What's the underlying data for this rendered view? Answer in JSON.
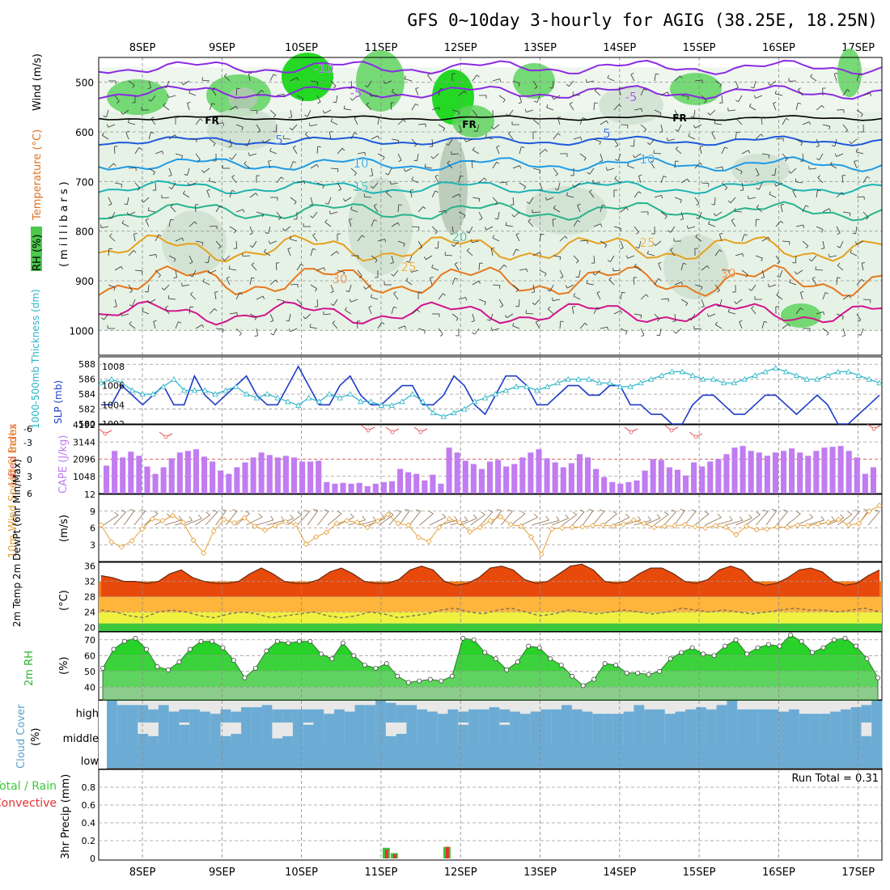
{
  "title": "GFS 0~10day 3-hourly for AGIG (38.25E, 18.25N)",
  "time_axis": {
    "labels": [
      "8SEP",
      "9SEP",
      "10SEP",
      "11SEP",
      "12SEP",
      "13SEP",
      "14SEP",
      "15SEP",
      "16SEP",
      "17SEP"
    ]
  },
  "colors": {
    "rh_light": "#e6f2e6",
    "rh_mid": "#cfe0cf",
    "rh_dark": "#b4c7b4",
    "rh_bright": "#5fd35f",
    "rh_vivid": "#00d200",
    "temp_m10": "#8a2be2",
    "temp_5": "#1e5adc",
    "temp_10": "#1e9be6",
    "temp_15": "#1eb4b4",
    "temp_20": "#28b48c",
    "temp_25": "#e6a01e",
    "temp_30": "#e6781e",
    "temp_35": "#d2148c",
    "slp": "#1e3cc8",
    "thick": "#28b4c8",
    "cape": "#c07cf0",
    "li": "#e65050",
    "wind": "#e6a03c",
    "barb": "#8c6e50",
    "t2m_band": "#ff6400",
    "dew": "#7a6a5a",
    "rh2m": "#28d228",
    "cloud": "#6cacd4",
    "cloud_empty": "#f4f0f8",
    "precip_total": "#3cc83c",
    "precip_conv": "#e63232"
  },
  "panels": {
    "upper": {
      "ylabel_rh": "RH (%)",
      "ylabel_temp": "Temperature (°C)",
      "ylabel_wind": "Wind (m/s)",
      "ylabel_p": "(millibars)",
      "yticks": [
        "500",
        "600",
        "700",
        "800",
        "900",
        "1000"
      ],
      "contour_labels": [
        {
          "text": "-10",
          "series": "temp_m10"
        },
        {
          "text": "-5",
          "series": "temp_m10"
        },
        {
          "text": "-5",
          "series": "temp_m10"
        },
        {
          "text": "5",
          "series": "temp_5"
        },
        {
          "text": "5",
          "series": "temp_5"
        },
        {
          "text": "10",
          "series": "temp_10"
        },
        {
          "text": "10",
          "series": "temp_10"
        },
        {
          "text": "15",
          "series": "temp_15"
        },
        {
          "text": "20",
          "series": "temp_20"
        },
        {
          "text": "25",
          "series": "temp_25"
        },
        {
          "text": "25",
          "series": "temp_25"
        },
        {
          "text": "30",
          "series": "temp_30"
        },
        {
          "text": "30",
          "series": "temp_30"
        }
      ],
      "freezing_label": "FR"
    },
    "slp": {
      "ylabel_thick": "1000-500mb Thickness (dm)",
      "ylabel_slp": "SLP (mb)",
      "left_ticks": [
        "580",
        "582",
        "584",
        "586",
        "588"
      ],
      "right_ticks": [
        "1002",
        "1004",
        "1006",
        "1008"
      ]
    },
    "cape": {
      "ylabel_li": "Lifted Index",
      "ylabel_cape": "CAPE (J/kg)",
      "li_ticks": [
        "-6",
        "-3",
        "0",
        "3",
        "6"
      ],
      "cape_ticks": [
        "4192",
        "3144",
        "2096",
        "1048"
      ]
    },
    "wind10": {
      "ylabel": "10m Wind Speed & Barbs",
      "units": "(m/s)",
      "yticks": [
        "3",
        "6",
        "9",
        "12"
      ]
    },
    "t2m": {
      "ylabel": "2m Temp 2m DewPt (6hr Min/Max)",
      "units": "(°C)",
      "yticks": [
        "20",
        "24",
        "28",
        "32",
        "36"
      ]
    },
    "rh2m": {
      "ylabel": "2m RH",
      "units": "(%)",
      "yticks": [
        "40",
        "50",
        "60",
        "70"
      ]
    },
    "cloud": {
      "ylabel": "Cloud Cover",
      "units": "(%)",
      "levels": [
        "high",
        "middle",
        "low"
      ]
    },
    "precip": {
      "ylabel_total": "Total / Rain",
      "ylabel_conv": "Convective",
      "ylabel": "3hr Precip (mm)",
      "yticks": [
        "0",
        "0.2",
        "0.4",
        "0.6",
        "0.8"
      ],
      "run_total": "Run Total = 0.31"
    }
  },
  "chart_data": {
    "type": "meteogram",
    "title": "GFS 0~10day 3-hourly for AGIG (38.25E, 18.25N)",
    "x_start": "07SEP 12Z",
    "x_step_hours": 3,
    "slp_mb": [
      1004,
      1004,
      1006,
      1005,
      1004,
      1005,
      1006,
      1004,
      1004,
      1007,
      1005,
      1004,
      1005,
      1006,
      1007,
      1005,
      1004,
      1004,
      1006,
      1008,
      1006,
      1004,
      1004,
      1006,
      1007,
      1005,
      1004,
      1004,
      1005,
      1006,
      1006,
      1004,
      1004,
      1005,
      1007,
      1006,
      1004,
      1003,
      1005,
      1007,
      1007,
      1006,
      1004,
      1004,
      1005,
      1006,
      1006,
      1005,
      1005,
      1006,
      1006,
      1004,
      1004,
      1003,
      1003,
      1002,
      1002,
      1004,
      1005,
      1005,
      1004,
      1003,
      1003,
      1004,
      1005,
      1005,
      1004,
      1003,
      1004,
      1005,
      1004,
      1002,
      1002,
      1003,
      1004,
      1005
    ],
    "thickness_dm": [
      585.5,
      586.0,
      585.5,
      584.5,
      584.0,
      584.0,
      585.0,
      586.0,
      584.5,
      584.5,
      584.5,
      584.0,
      584.5,
      585.0,
      584.0,
      583.5,
      584.0,
      583.5,
      583.0,
      582.5,
      583.5,
      583.0,
      584.0,
      583.5,
      584.0,
      583.0,
      583.0,
      582.5,
      582.5,
      583.0,
      584.0,
      583.0,
      581.5,
      581.0,
      581.5,
      582.0,
      583.0,
      583.5,
      584.0,
      584.5,
      585.0,
      585.0,
      584.5,
      585.0,
      585.5,
      586.0,
      586.0,
      586.0,
      585.5,
      585.5,
      585.0,
      585.0,
      585.5,
      586.0,
      586.5,
      587.0,
      587.0,
      586.5,
      586.0,
      586.0,
      585.5,
      585.5,
      586.0,
      586.5,
      587.0,
      587.5,
      587.0,
      586.5,
      586.0,
      586.0,
      586.5,
      587.0,
      587.0,
      586.5,
      586.0,
      585.5
    ],
    "cape_jkg": [
      1700,
      2600,
      2200,
      2550,
      2300,
      1650,
      1200,
      1600,
      2150,
      2500,
      2600,
      2700,
      2250,
      1950,
      1400,
      1200,
      1600,
      1900,
      2200,
      2500,
      2350,
      2200,
      2300,
      2200,
      1950,
      1950,
      2000,
      700,
      600,
      650,
      600,
      650,
      450,
      600,
      700,
      750,
      1500,
      1300,
      1200,
      800,
      1150,
      600,
      2800,
      2500,
      2000,
      1800,
      1500,
      1950,
      2050,
      1650,
      1800,
      2200,
      2500,
      2700,
      2150,
      1900,
      1600,
      1850,
      2400,
      2200,
      1500,
      1000,
      700,
      600,
      700,
      800,
      1400,
      2100,
      2050,
      1600,
      1450,
      1100,
      1900,
      1650,
      1950,
      2100,
      2400,
      2800,
      2900,
      2600,
      2500,
      2300,
      2500,
      2600,
      2750,
      2500,
      2300,
      2600,
      2800,
      2850,
      2900,
      2600,
      2200,
      1200,
      1600
    ],
    "wind10_ms": [
      6.5,
      3.5,
      2.6,
      3.7,
      5.8,
      7.6,
      7.3,
      8.2,
      7.0,
      3.8,
      1.5,
      5.4,
      7.5,
      6.9,
      7.8,
      6.3,
      5.6,
      6.4,
      7.1,
      6.6,
      3.1,
      4.4,
      5.2,
      6.8,
      7.3,
      7.0,
      6.1,
      7.2,
      8.4,
      6.8,
      6.5,
      4.3,
      3.6,
      6.1,
      7.6,
      7.0,
      5.3,
      6.1,
      7.3,
      8.0,
      6.6,
      6.3,
      4.4,
      1.3,
      5.8,
      6.0,
      6.1,
      6.2,
      6.4,
      6.5,
      6.3,
      6.7,
      7.4,
      6.8,
      6.1,
      6.3,
      6.4,
      6.6,
      6.2,
      6.0,
      6.4,
      6.1,
      4.8,
      6.3,
      5.7,
      5.8,
      6.2,
      6.1,
      6.5,
      6.4,
      6.7,
      7.0,
      7.5,
      6.5,
      6.8,
      9.0,
      10.0
    ],
    "t2m_c": [
      33.5,
      33.0,
      32.0,
      32.0,
      31.5,
      32.0,
      34.0,
      35.0,
      33.0,
      32.0,
      31.5,
      31.5,
      32.0,
      34.0,
      35.5,
      34.0,
      32.0,
      31.5,
      31.5,
      32.5,
      34.5,
      35.5,
      34.0,
      32.0,
      31.5,
      31.5,
      32.5,
      35.0,
      36.0,
      35.0,
      32.0,
      31.0,
      31.5,
      33.0,
      35.5,
      36.0,
      35.0,
      32.5,
      31.5,
      32.0,
      34.0,
      36.0,
      36.5,
      35.0,
      32.0,
      31.5,
      32.0,
      34.0,
      35.5,
      35.5,
      34.0,
      32.0,
      31.5,
      32.5,
      35.0,
      36.0,
      35.0,
      32.0,
      31.0,
      31.5,
      33.0,
      35.0,
      35.5,
      34.5,
      32.0,
      31.0,
      31.5,
      33.5,
      35.0
    ],
    "dewpt_c": [
      24.5,
      24.0,
      23.0,
      22.5,
      24.0,
      24.5,
      24.0,
      23.0,
      22.5,
      23.5,
      24.0,
      23.5,
      22.5,
      23.0,
      23.5,
      24.0,
      23.0,
      22.5,
      23.0,
      24.0,
      23.5,
      22.5,
      23.0,
      23.5,
      24.5,
      25.0,
      24.0,
      23.5,
      24.5,
      25.0,
      24.0,
      23.0,
      23.5,
      24.5,
      24.0,
      23.5,
      24.0,
      24.5,
      24.0,
      23.5,
      24.0,
      25.0,
      24.5,
      24.0,
      24.5,
      24.0,
      23.5,
      24.0,
      24.5,
      25.0,
      24.5,
      24.5,
      24.0,
      24.5,
      25.0,
      24.0
    ],
    "rh2m_pct": [
      52,
      64,
      69,
      71,
      64,
      53,
      51,
      56,
      64,
      69,
      69,
      65,
      57,
      46,
      52,
      63,
      69,
      68,
      69,
      69,
      61,
      58,
      68,
      60,
      54,
      52,
      55,
      47,
      43,
      44,
      45,
      44,
      47,
      71,
      70,
      62,
      58,
      51,
      56,
      66,
      65,
      58,
      54,
      47,
      41,
      45,
      55,
      54,
      49,
      49,
      48,
      50,
      58,
      62,
      65,
      61,
      60,
      66,
      70,
      61,
      65,
      67,
      66,
      73,
      69,
      62,
      65,
      70,
      71,
      66,
      58,
      46
    ],
    "cloud_high_pct": [
      100,
      80,
      80,
      80,
      60,
      80,
      50,
      60,
      60,
      50,
      40,
      60,
      50,
      70,
      70,
      80,
      60,
      60,
      60,
      60,
      60,
      40,
      60,
      50,
      80,
      80,
      100,
      90,
      80,
      80,
      60,
      50,
      40,
      60,
      50,
      60,
      60,
      70,
      60,
      50,
      40,
      50,
      60,
      60,
      80,
      60,
      50,
      40,
      40,
      40,
      50,
      80,
      60,
      60,
      40,
      50,
      60,
      70,
      60,
      80,
      100,
      60,
      60,
      60,
      60,
      50,
      60,
      40,
      40,
      40,
      50,
      60,
      70,
      80,
      100
    ],
    "cloud_mid_pct": [
      100,
      100,
      100,
      50,
      40,
      100,
      100,
      90,
      100,
      100,
      100,
      40,
      50,
      100,
      100,
      100,
      30,
      40,
      100,
      90,
      100,
      100,
      100,
      100,
      100,
      100,
      100,
      40,
      50,
      100,
      100,
      100,
      100,
      100,
      90,
      100,
      100,
      100,
      90,
      100,
      100,
      100,
      100,
      100,
      100,
      100,
      100,
      100,
      100,
      100,
      100,
      100,
      100,
      100,
      100,
      100,
      100,
      100,
      100,
      100,
      100,
      100,
      100,
      100,
      100,
      100,
      100,
      100,
      100,
      100,
      100,
      100,
      100,
      40,
      100
    ],
    "cloud_low_pct": [
      100,
      100,
      100,
      100,
      100,
      100,
      100,
      100,
      100,
      100,
      100,
      100,
      100,
      100,
      100,
      100,
      100,
      100,
      100,
      100,
      100,
      100,
      100,
      100,
      100,
      100,
      100,
      100,
      100,
      100,
      100,
      100,
      100,
      100,
      100,
      100,
      100,
      100,
      100,
      100,
      100,
      100,
      100,
      100,
      100,
      100,
      100,
      100,
      100,
      100,
      100,
      100,
      100,
      100,
      100,
      100,
      100,
      100,
      100,
      100,
      100,
      100,
      100,
      100,
      100,
      100,
      100,
      100,
      100,
      100,
      100,
      100,
      100,
      100,
      100
    ],
    "precip_mm": [
      {
        "time": "11SEP 00Z",
        "total": 0.12,
        "convective": 0.1
      },
      {
        "time": "11SEP 03Z",
        "total": 0.06,
        "convective": 0.05
      },
      {
        "time": "11SEP 21Z",
        "total": 0.13,
        "convective": 0.13
      }
    ],
    "precip_run_total": 0.31,
    "ranges": {
      "pressure_mb": [
        450,
        1050
      ],
      "slp_mb": [
        1002,
        1009
      ],
      "thickness_dm": [
        580,
        589
      ],
      "cape_jkg": [
        0,
        4192
      ],
      "lifted_index": [
        6,
        -6
      ],
      "wind10_ms": [
        0,
        12
      ],
      "t2m_c": [
        19,
        37
      ],
      "rh2m_pct": [
        32,
        75
      ],
      "precip_mm": [
        0,
        1.0
      ]
    }
  }
}
